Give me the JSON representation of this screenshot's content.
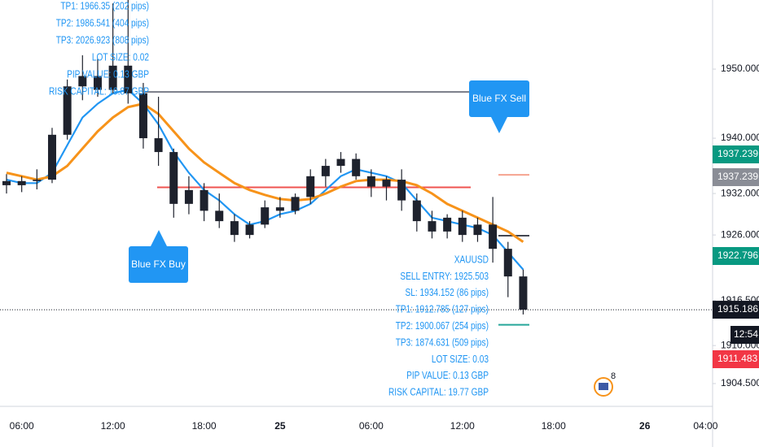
{
  "chart_data": {
    "type": "candlestick",
    "categories": [
      null,
      "06:00",
      null,
      null,
      null,
      null,
      null,
      "12:00",
      null,
      null,
      null,
      null,
      null,
      "18:00",
      null,
      null,
      null,
      null,
      "25",
      null,
      null,
      null,
      null,
      null,
      "06:00",
      null,
      null,
      null,
      null,
      null,
      "12:00",
      null,
      null,
      null,
      null,
      null,
      "18:00",
      null,
      null,
      null,
      null,
      null,
      "26",
      null,
      null,
      null,
      "04:00"
    ],
    "open": [
      1933.8,
      1933.2,
      1933.8,
      1934.0,
      1940.5,
      1947.5,
      1949.0,
      1947.0,
      1950.5,
      1946.5,
      1940.0,
      1938.0,
      1930.5,
      1932.5,
      1929.5,
      1928.0,
      1926.0,
      1927.5,
      1930.0,
      1929.5,
      1931.5,
      1934.5,
      1936.0,
      1937.0,
      1934.5,
      1933.0,
      1934.0,
      1931.0,
      1928.0,
      1926.5,
      1928.5,
      1926.0,
      1927.5,
      1924.0,
      1920.0,
      null,
      null,
      null,
      null,
      null,
      null,
      null,
      null,
      null,
      null,
      null,
      null
    ],
    "high": [
      1934.8,
      1934.5,
      1935.5,
      1941.5,
      1948.5,
      1952.0,
      1951.5,
      1959.5,
      1960.0,
      1948.0,
      1946.0,
      1938.5,
      1934.5,
      1933.5,
      1932.0,
      1929.0,
      1928.0,
      1931.0,
      1931.5,
      1932.0,
      1935.5,
      1937.0,
      1938.0,
      1937.8,
      1935.5,
      1934.5,
      1935.5,
      1932.0,
      1929.5,
      1929.0,
      1929.5,
      1928.5,
      1931.5,
      1925.0,
      1921.0,
      null,
      null,
      null,
      null,
      null,
      null,
      null,
      null,
      null,
      null,
      null,
      null
    ],
    "low": [
      1932.0,
      1932.2,
      1932.6,
      1933.5,
      1939.8,
      1945.5,
      1946.0,
      1946.5,
      1945.0,
      1938.5,
      1936.0,
      1928.5,
      1929.0,
      1928.0,
      1927.0,
      1925.0,
      1925.5,
      1927.0,
      1928.5,
      1929.0,
      1930.5,
      1933.0,
      1935.0,
      1934.0,
      1931.5,
      1931.0,
      1929.5,
      1926.5,
      1925.5,
      1925.5,
      1925.0,
      1925.0,
      1922.0,
      1917.0,
      1914.5,
      null,
      null,
      null,
      null,
      null,
      null,
      null,
      null,
      null,
      null,
      null,
      null
    ],
    "close": [
      1933.2,
      1933.8,
      1934.0,
      1940.5,
      1947.5,
      1949.0,
      1947.0,
      1950.5,
      1946.5,
      1940.0,
      1938.0,
      1930.5,
      1932.5,
      1929.5,
      1928.0,
      1926.0,
      1927.5,
      1930.0,
      1929.5,
      1931.5,
      1934.5,
      1936.0,
      1937.0,
      1934.5,
      1933.0,
      1934.0,
      1931.0,
      1928.0,
      1926.5,
      1928.5,
      1926.0,
      1927.5,
      1924.0,
      1920.0,
      1915.186,
      null,
      null,
      null,
      null,
      null,
      null,
      null,
      null,
      null,
      null,
      null,
      null
    ],
    "candle_color": "#1e222d",
    "ma_lines": [
      {
        "color": "#2196f3",
        "values": [
          1934,
          1933.5,
          1933.5,
          1935,
          1939,
          1943,
          1945,
          1946.5,
          1947,
          1945,
          1942,
          1938,
          1935,
          1932.5,
          1931,
          1929,
          1927.5,
          1928,
          1929,
          1929.5,
          1930.5,
          1932.5,
          1934.5,
          1935.5,
          1935,
          1934.5,
          1933.5,
          1931,
          1928.5,
          1928,
          1927.5,
          1927,
          1926,
          1923.5,
          1921,
          null,
          null,
          null,
          null,
          null,
          null,
          null,
          null,
          null,
          null,
          null,
          null
        ]
      },
      {
        "color": "#f7931a",
        "values": [
          1935,
          1934.5,
          1934,
          1934.5,
          1936,
          1938.5,
          1941,
          1943,
          1944.5,
          1945,
          1943.5,
          1941,
          1938.5,
          1936.5,
          1935,
          1933.5,
          1932.5,
          1931.8,
          1931.2,
          1931,
          1931.2,
          1932,
          1933,
          1933.8,
          1934,
          1934,
          1933.8,
          1933.2,
          1932,
          1930.5,
          1929.5,
          1928.5,
          1927.5,
          1926.5,
          1925,
          null,
          null,
          null,
          null,
          null,
          null,
          null,
          null,
          null,
          null,
          null,
          null
        ]
      }
    ],
    "levels": [
      {
        "value": 1946.7,
        "color": "#787b86"
      },
      {
        "value": 1932.9,
        "color": "#ef5350"
      },
      {
        "value": 1934.7,
        "color": "#f5a38f"
      },
      {
        "value": 1925.9,
        "color": "#434651"
      },
      {
        "value": 1913.0,
        "color": "#26a69a"
      }
    ],
    "ylim": [
      1901.2,
      1960
    ],
    "yticks": [
      {
        "value": 1950,
        "label": "1950.000"
      },
      {
        "value": 1940,
        "label": "1940.000"
      },
      {
        "value": 1932,
        "label": "1932.000"
      },
      {
        "value": 1926,
        "label": "1926.000"
      },
      {
        "value": 1916.5,
        "label": "1916.500"
      },
      {
        "value": 1910,
        "label": "1910.000"
      },
      {
        "value": 1904.5,
        "label": "1904.500"
      }
    ],
    "price_tags": [
      {
        "label": "1937.239",
        "color": "#089981"
      },
      {
        "label": "1937.239",
        "color": "#8a8d96"
      },
      {
        "label": "1922.796",
        "color": "#089981"
      },
      {
        "label": "1911.483",
        "color": "#f23645"
      }
    ],
    "last_price_color": "#131722",
    "countdown": "12:54",
    "buy_notes": [
      "TP1: 1966.35 (202 pips)",
      "TP2: 1986.541 (404 pips)",
      "TP3: 2026.923 (808 pips)",
      "LOT SIZE: 0.02",
      "PIP VALUE: 0.13 GBP",
      "RISK CAPITAL: 19.87 GBP"
    ],
    "sell_notes": [
      "XAUUSD",
      "SELL ENTRY: 1925.503",
      "SL: 1934.152 (86 pips)",
      "TP1: 1912.785 (127 pips)",
      "TP2: 1900.067 (254 pips)",
      "TP3: 1874.631 (509 pips)",
      "LOT SIZE: 0.03",
      "PIP VALUE: 0.13 GBP",
      "RISK CAPITAL: 19.77 GBP"
    ],
    "buy_label": "Blue FX Buy",
    "sell_label": "Blue FX Sell",
    "badge": "8"
  }
}
